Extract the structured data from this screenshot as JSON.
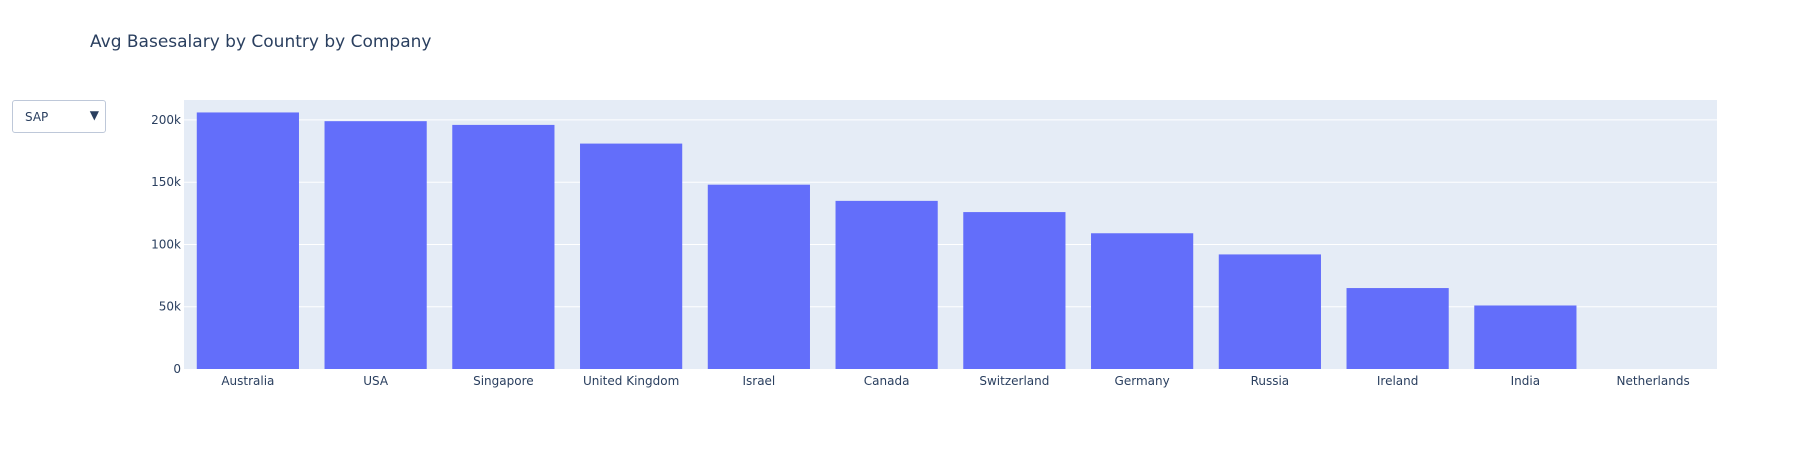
{
  "dropdown": {
    "selected": "SAP",
    "arrow_icon": "triangle-down-icon"
  },
  "colors": {
    "bar": "#636efa",
    "plot_bg": "#e5ecf6",
    "grid": "#ffffff",
    "text": "#2a3f5f"
  },
  "chart_data": {
    "type": "bar",
    "title": "Avg Basesalary by Country by Company",
    "xlabel": "",
    "ylabel": "",
    "categories": [
      "Australia",
      "USA",
      "Singapore",
      "United Kingdom",
      "Israel",
      "Canada",
      "Switzerland",
      "Germany",
      "Russia",
      "Ireland",
      "India",
      "Netherlands"
    ],
    "values": [
      206000,
      199000,
      196000,
      181000,
      148000,
      135000,
      126000,
      109000,
      92000,
      65000,
      51000,
      0
    ],
    "yticks": [
      0,
      50000,
      100000,
      150000,
      200000
    ],
    "ytick_labels": [
      "0",
      "50k",
      "100k",
      "150k",
      "200k"
    ],
    "ylim": [
      0,
      216000
    ],
    "grid": true,
    "legend": "none"
  }
}
